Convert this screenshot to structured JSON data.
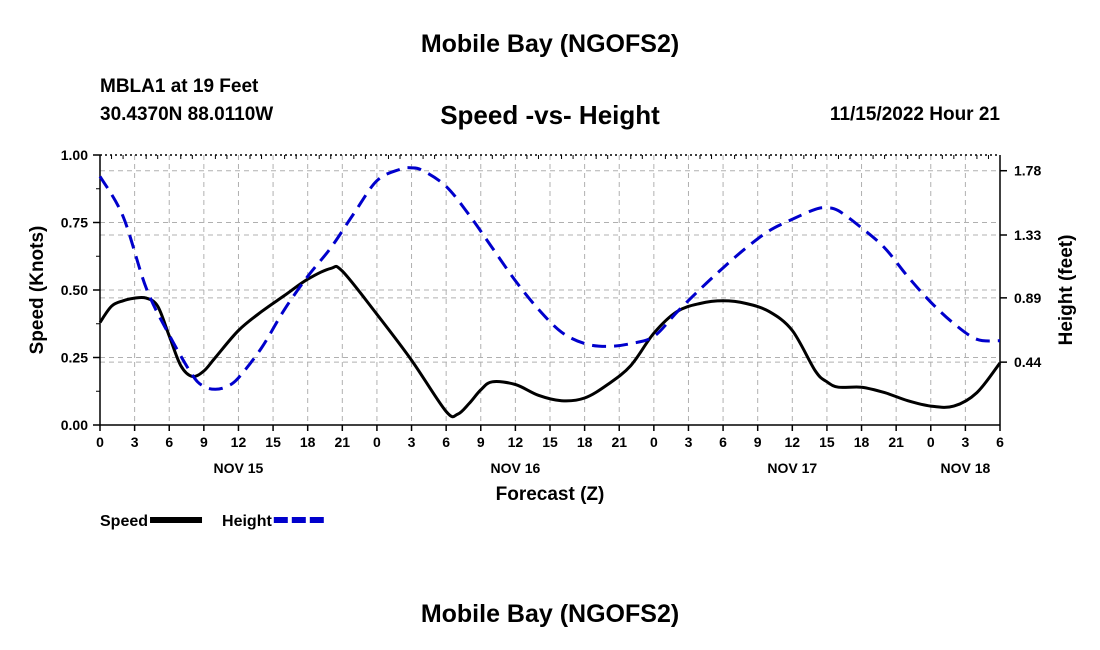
{
  "header": {
    "title": "Mobile Bay (NGOFS2)",
    "station": "MBLA1 at 19 Feet",
    "coords": "30.4370N  88.0110W",
    "subtitle": "Speed -vs- Height",
    "datetime": "11/15/2022 Hour 21"
  },
  "footer": {
    "title": "Mobile Bay (NGOFS2)"
  },
  "chart_data": {
    "type": "line",
    "xlabel": "Forecast (Z)",
    "ylabel_left": "Speed (Knots)",
    "ylabel_right": "Height (feet)",
    "x_unit": "hours from Nov 15 00Z",
    "xlim": [
      0,
      78
    ],
    "ylim_left": [
      0,
      1
    ],
    "ylim_right": [
      0,
      1.89
    ],
    "x_tick_values": [
      0,
      3,
      6,
      9,
      12,
      15,
      18,
      21,
      24,
      27,
      30,
      33,
      36,
      39,
      42,
      45,
      48,
      51,
      54,
      57,
      60,
      63,
      66,
      69,
      72,
      75,
      78
    ],
    "x_tick_labels": [
      "0",
      "3",
      "6",
      "9",
      "12",
      "15",
      "18",
      "21",
      "0",
      "3",
      "6",
      "9",
      "12",
      "15",
      "18",
      "21",
      "0",
      "3",
      "6",
      "9",
      "12",
      "15",
      "18",
      "21",
      "0",
      "3",
      "6"
    ],
    "date_labels": [
      {
        "label": "NOV 15",
        "x": 12
      },
      {
        "label": "NOV 16",
        "x": 36
      },
      {
        "label": "NOV 17",
        "x": 60
      },
      {
        "label": "NOV 18",
        "x": 75
      }
    ],
    "y_left_ticks": [
      "0.00",
      "0.25",
      "0.50",
      "0.75",
      "1.00"
    ],
    "y_left_tick_values": [
      0,
      0.25,
      0.5,
      0.75,
      1.0
    ],
    "y_right_ticks": [
      "0.44",
      "0.89",
      "1.33",
      "1.78"
    ],
    "y_right_tick_values": [
      0.44,
      0.89,
      1.33,
      1.78
    ],
    "grid": true,
    "legend_position": "bottom-left",
    "series": [
      {
        "name": "Speed",
        "axis": "left",
        "color": "#000000",
        "style": "solid",
        "x": [
          0,
          1,
          2,
          3,
          4,
          5,
          6,
          7,
          8,
          9,
          10,
          12,
          14,
          16,
          18,
          20,
          21,
          24,
          27,
          30,
          31,
          32,
          33,
          34,
          36,
          38,
          40,
          42,
          44,
          46,
          48,
          50,
          52,
          54,
          56,
          58,
          60,
          62,
          63,
          64,
          66,
          68,
          70,
          72,
          74,
          76,
          78
        ],
        "y": [
          0.38,
          0.44,
          0.46,
          0.47,
          0.47,
          0.44,
          0.33,
          0.22,
          0.18,
          0.2,
          0.25,
          0.35,
          0.42,
          0.48,
          0.54,
          0.58,
          0.57,
          0.41,
          0.24,
          0.05,
          0.04,
          0.08,
          0.13,
          0.16,
          0.15,
          0.11,
          0.09,
          0.1,
          0.15,
          0.22,
          0.34,
          0.42,
          0.45,
          0.46,
          0.45,
          0.42,
          0.35,
          0.2,
          0.16,
          0.14,
          0.14,
          0.12,
          0.09,
          0.07,
          0.07,
          0.12,
          0.23
        ]
      },
      {
        "name": "Height",
        "axis": "right",
        "color": "#0000cc",
        "style": "dashed",
        "x": [
          0,
          2,
          4,
          6,
          8,
          9,
          10,
          11,
          12,
          14,
          16,
          18,
          20,
          22,
          24,
          26,
          27,
          28,
          30,
          32,
          34,
          36,
          38,
          40,
          42,
          44,
          46,
          48,
          50,
          52,
          54,
          56,
          58,
          60,
          62,
          63,
          64,
          66,
          68,
          70,
          72,
          74,
          76,
          78
        ],
        "y": [
          1.74,
          1.46,
          0.96,
          0.63,
          0.35,
          0.27,
          0.25,
          0.27,
          0.33,
          0.54,
          0.81,
          1.04,
          1.24,
          1.48,
          1.71,
          1.79,
          1.8,
          1.78,
          1.67,
          1.47,
          1.24,
          1.01,
          0.81,
          0.65,
          0.57,
          0.55,
          0.57,
          0.62,
          0.79,
          0.95,
          1.1,
          1.24,
          1.36,
          1.44,
          1.51,
          1.52,
          1.5,
          1.38,
          1.24,
          1.04,
          0.86,
          0.71,
          0.6,
          0.59
        ]
      }
    ]
  }
}
